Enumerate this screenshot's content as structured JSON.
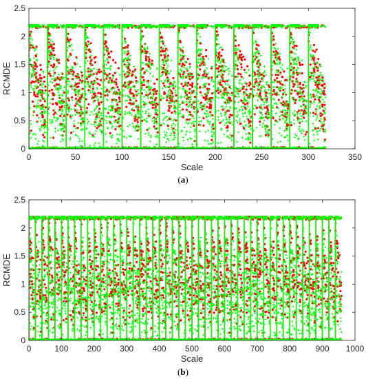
{
  "chart_data": [
    {
      "type": "scatter",
      "panel_label": "(a)",
      "xlabel": "Scale",
      "ylabel": "RCMDE",
      "xlim": [
        0,
        350
      ],
      "ylim": [
        0,
        2.5
      ],
      "xticks": [
        0,
        50,
        100,
        150,
        200,
        250,
        300,
        350
      ],
      "yticks": [
        0,
        0.5,
        1,
        1.5,
        2,
        2.5
      ],
      "grid": false,
      "pattern": {
        "cycle_length": 20,
        "cycles": 16,
        "x_end": 320,
        "y_min": 0,
        "y_max": 2.2
      },
      "series": [
        {
          "color": "#ff0000",
          "marker": "*"
        },
        {
          "color": "#00ff00",
          "marker": "+"
        }
      ]
    },
    {
      "type": "scatter",
      "panel_label": "(b)",
      "xlabel": "Scale",
      "ylabel": "RCMDE",
      "xlim": [
        0,
        1000
      ],
      "ylim": [
        0,
        2.5
      ],
      "xticks": [
        0,
        100,
        200,
        300,
        400,
        500,
        600,
        700,
        800,
        900,
        1000
      ],
      "yticks": [
        0,
        0.5,
        1,
        1.5,
        2,
        2.5
      ],
      "grid": false,
      "pattern": {
        "cycle_length": 20,
        "cycles": 48,
        "x_end": 960,
        "y_min": 0,
        "y_max": 2.2
      },
      "series": [
        {
          "color": "#ff0000",
          "marker": "*"
        },
        {
          "color": "#00ff00",
          "marker": "+"
        }
      ]
    }
  ]
}
